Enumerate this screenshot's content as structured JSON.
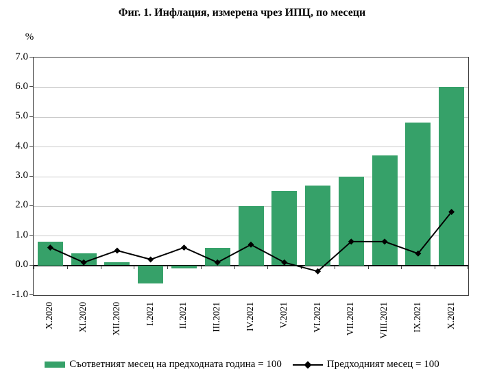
{
  "figure": {
    "title": "Фиг. 1. Инфлация, измерена чрез ИПЦ, по месеци",
    "y_axis_unit": "%"
  },
  "legend": {
    "bar_series_label": "Съответният месец на предходната година = 100",
    "line_series_label": "Предходният месец = 100"
  },
  "colors": {
    "bar_fill": "#36a169",
    "line": "#000000",
    "gridline": "#c9c9c9",
    "axis": "#3f3f3f",
    "zero_line": "#000000"
  },
  "chart_data": {
    "type": "bar",
    "subtype": "bar-and-line-combo",
    "title": "Фиг. 1. Инфлация, измерена чрез ИПЦ, по месеци",
    "xlabel": "",
    "ylabel": "%",
    "ylim": [
      -1.0,
      7.0
    ],
    "ytick_step": 1.0,
    "grid": true,
    "legend_position": "bottom",
    "categories": [
      "X.2020",
      "XI.2020",
      "XII.2020",
      "I.2021",
      "II.2021",
      "III.2021",
      "IV.2021",
      "V.2021",
      "VI.2021",
      "VII.2021",
      "VIII.2021",
      "IX.2021",
      "X.2021"
    ],
    "series": [
      {
        "name": "Съответният месец на предходната година = 100",
        "type": "bar",
        "values": [
          0.8,
          0.4,
          0.1,
          -0.6,
          -0.1,
          0.6,
          2.0,
          2.5,
          2.7,
          3.0,
          3.7,
          4.8,
          6.0
        ]
      },
      {
        "name": "Предходният месец = 100",
        "type": "line",
        "marker": "diamond",
        "values": [
          0.6,
          0.1,
          0.5,
          0.2,
          0.6,
          0.1,
          0.7,
          0.1,
          -0.2,
          0.8,
          0.8,
          0.4,
          1.8
        ]
      }
    ]
  }
}
